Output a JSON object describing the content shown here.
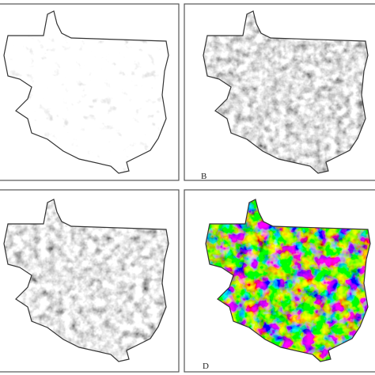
{
  "panels": [
    {
      "label": "B"
    },
    {
      "label": "D"
    }
  ]
}
